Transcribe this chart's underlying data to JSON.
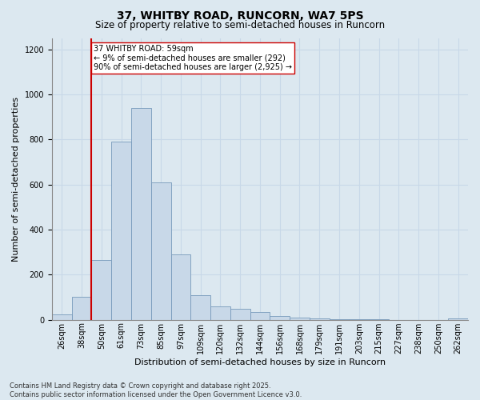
{
  "title_line1": "37, WHITBY ROAD, RUNCORN, WA7 5PS",
  "title_line2": "Size of property relative to semi-detached houses in Runcorn",
  "xlabel": "Distribution of semi-detached houses by size in Runcorn",
  "ylabel": "Number of semi-detached properties",
  "bins": [
    "26sqm",
    "38sqm",
    "50sqm",
    "61sqm",
    "73sqm",
    "85sqm",
    "97sqm",
    "109sqm",
    "120sqm",
    "132sqm",
    "144sqm",
    "156sqm",
    "168sqm",
    "179sqm",
    "191sqm",
    "203sqm",
    "215sqm",
    "227sqm",
    "238sqm",
    "250sqm",
    "262sqm"
  ],
  "values": [
    25,
    100,
    265,
    790,
    940,
    610,
    290,
    110,
    60,
    50,
    35,
    15,
    10,
    5,
    2,
    1,
    1,
    0,
    0,
    0,
    5
  ],
  "bar_color": "#c8d8e8",
  "bar_edge_color": "#7799bb",
  "vline_x_index": 2,
  "vline_color": "#cc0000",
  "annotation_text": "37 WHITBY ROAD: 59sqm\n← 9% of semi-detached houses are smaller (292)\n90% of semi-detached houses are larger (2,925) →",
  "annotation_box_facecolor": "#ffffff",
  "annotation_box_edgecolor": "#cc0000",
  "ylim": [
    0,
    1250
  ],
  "yticks": [
    0,
    200,
    400,
    600,
    800,
    1000,
    1200
  ],
  "grid_color": "#c8d8e8",
  "bg_color": "#dce8f0",
  "footer_line1": "Contains HM Land Registry data © Crown copyright and database right 2025.",
  "footer_line2": "Contains public sector information licensed under the Open Government Licence v3.0.",
  "title_fontsize": 10,
  "subtitle_fontsize": 8.5,
  "axis_label_fontsize": 8,
  "tick_fontsize": 7,
  "annotation_fontsize": 7,
  "footer_fontsize": 6
}
